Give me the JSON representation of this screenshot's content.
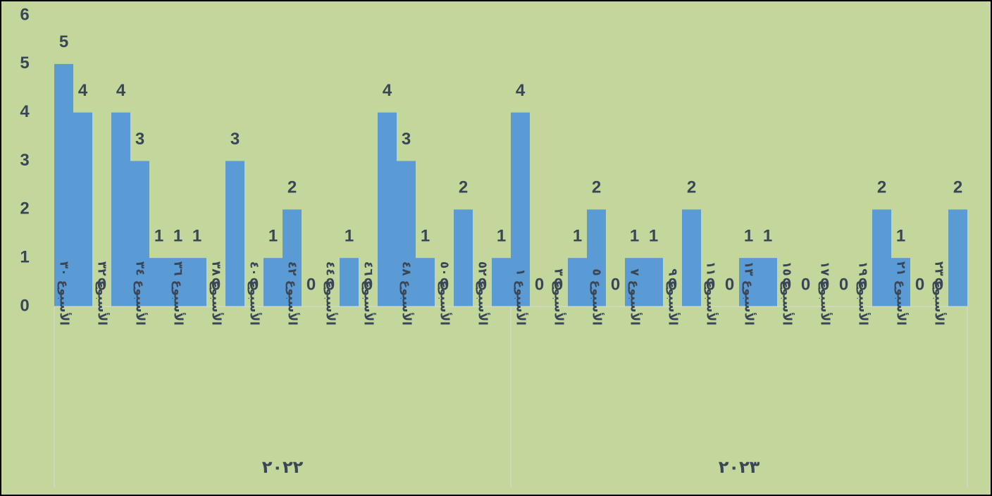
{
  "chart_data": {
    "type": "bar",
    "color": "#5b9bd5",
    "ylim": [
      0,
      6
    ],
    "yticks": [
      0,
      1,
      2,
      3,
      4,
      5,
      6
    ],
    "groups": [
      {
        "label": "٢٠٢٢",
        "categories": [
          "الأسبوع ٣٠",
          null,
          "الأسبوع ٣٢",
          null,
          "الأسبوع ٣٤",
          null,
          "الأسبوع ٣٦",
          null,
          "الأسبوع ٣٨",
          null,
          "الأسبوع ٤٠",
          null,
          "الأسبوع ٤٢",
          null,
          "الأسبوع ٤٤",
          null,
          "الأسبوع ٤٦",
          null,
          "الأسبوع ٤٨",
          null,
          "الأسبوع ٥٠",
          null,
          "الأسبوع ٥٢",
          null
        ]
      },
      {
        "label": "٢٠٢٣",
        "categories": [
          "الأسبوع ١",
          null,
          "الأسبوع ٣",
          null,
          "الأسبوع ٥",
          null,
          "الأسبوع ٧",
          null,
          "الأسبوع ٩",
          null,
          "الأسبوع ١١",
          null,
          "الأسبوع ١٣",
          null,
          "الأسبوع ١٥",
          null,
          "الأسبوع ١٧",
          null,
          "الأسبوع ١٩",
          null,
          "الأسبوع ٢١",
          null,
          "الأسبوع ٢٣",
          null
        ]
      }
    ],
    "values": [
      5,
      4,
      0,
      4,
      3,
      1,
      1,
      1,
      0,
      3,
      0,
      1,
      2,
      0,
      0,
      1,
      0,
      4,
      3,
      1,
      0,
      2,
      0,
      1,
      4,
      0,
      0,
      1,
      2,
      0,
      1,
      1,
      0,
      2,
      0,
      0,
      1,
      1,
      0,
      0,
      0,
      0,
      0,
      2,
      1,
      0,
      0,
      2
    ]
  }
}
